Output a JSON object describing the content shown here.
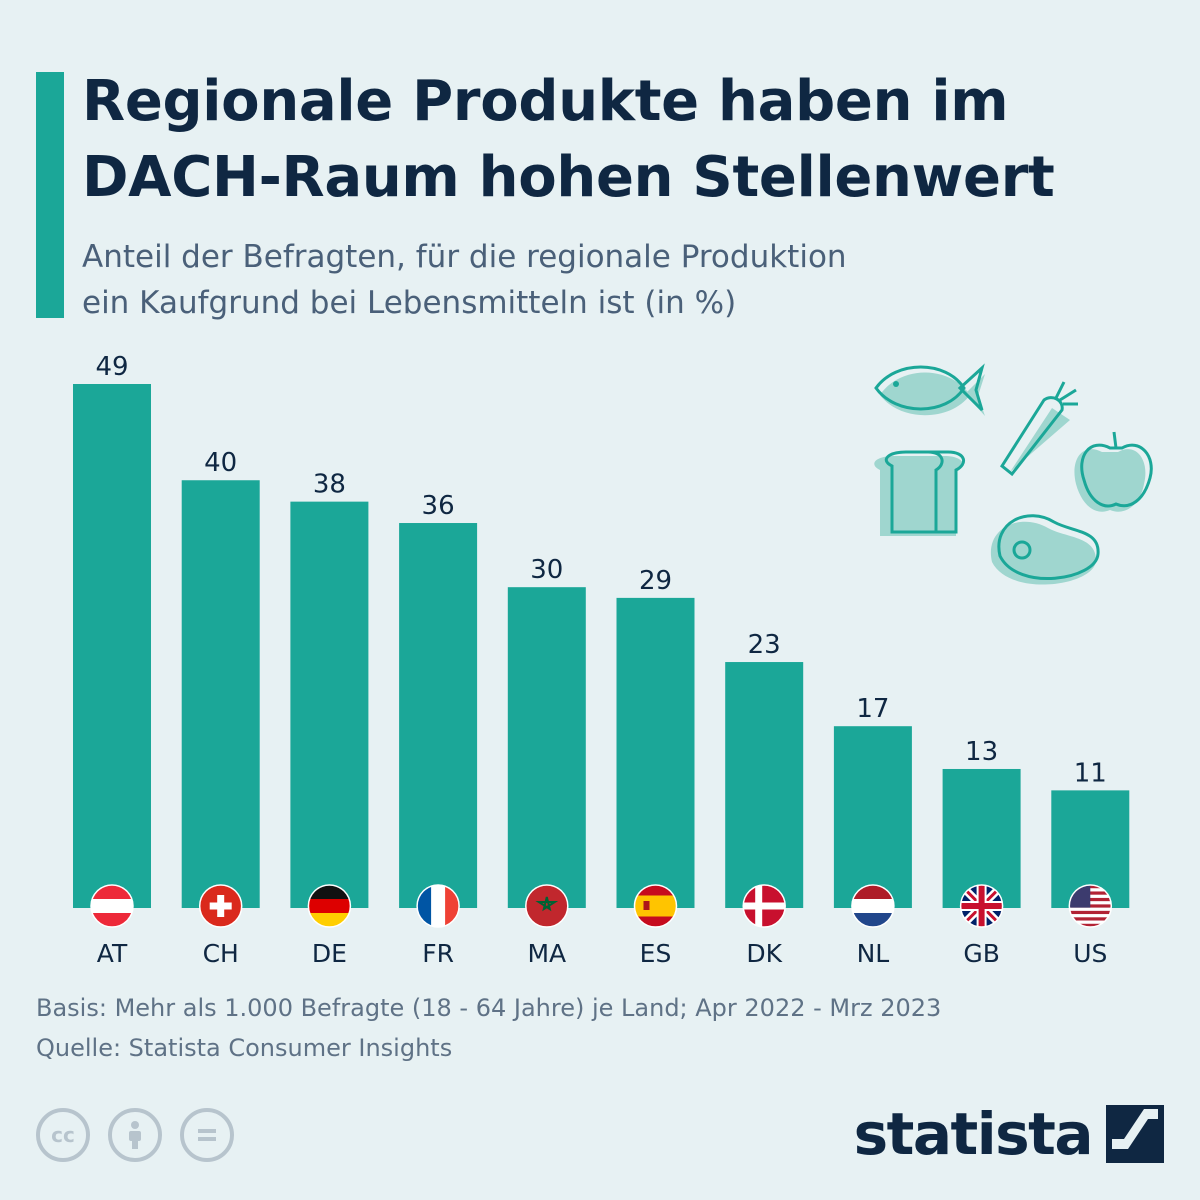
{
  "header": {
    "title_line1": "Regionale Produkte haben im",
    "title_line2": "DACH-Raum hohen Stellenwert",
    "subtitle_line1": "Anteil der Befragten, für die regionale Produktion",
    "subtitle_line2": "ein Kaufgrund bei Lebensmitteln ist (in %)"
  },
  "colors": {
    "accent": "#1ba798",
    "bar": "#1ba798",
    "title": "#0f2742",
    "background": "#e7f1f3"
  },
  "chart_data": {
    "type": "bar",
    "categories": [
      "AT",
      "CH",
      "DE",
      "FR",
      "MA",
      "ES",
      "DK",
      "NL",
      "GB",
      "US"
    ],
    "values": [
      49,
      40,
      38,
      36,
      30,
      29,
      23,
      17,
      13,
      11
    ],
    "title": "Regionale Produkte haben im DACH-Raum hohen Stellenwert",
    "subtitle": "Anteil der Befragten, für die regionale Produktion ein Kaufgrund bei Lebensmitteln ist (in %)",
    "xlabel": "",
    "ylabel": "",
    "ylim": [
      0,
      49
    ],
    "grid": false,
    "legend": "none",
    "data_labels": true
  },
  "footer": {
    "basis": "Basis: Mehr als 1.000 Befragte (18 - 64 Jahre) je Land; Apr 2022 - Mrz 2023",
    "source": "Quelle: Statista Consumer Insights"
  },
  "license_icons": [
    "cc-icon",
    "attribution-icon",
    "no-derivatives-icon"
  ],
  "logo": {
    "text": "statista"
  }
}
